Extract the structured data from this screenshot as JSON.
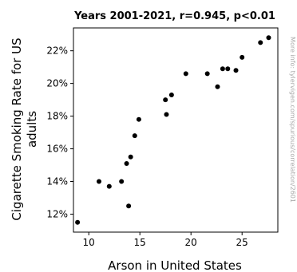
{
  "chart_data": {
    "type": "scatter",
    "title": "Years 2001-2021, r=0.945, p<0.01",
    "xlabel": "Arson in United States",
    "ylabel_line1": "Cigarette Smoking Rate for US",
    "ylabel_line2": "adults",
    "side_note": "More info: tylervigen.com/spurious/correlation/2601",
    "xlim": [
      8.5,
      28.5
    ],
    "ylim": [
      10.9,
      23.4
    ],
    "x_ticks": [
      10,
      15,
      20,
      25
    ],
    "x_tick_labels": [
      "10",
      "15",
      "20",
      "25"
    ],
    "y_ticks": [
      12,
      14,
      16,
      18,
      20,
      22
    ],
    "y_tick_labels": [
      "12%",
      "14%",
      "16%",
      "18%",
      "20%",
      "22%"
    ],
    "grid": false,
    "marker_color": "#000000",
    "points": [
      {
        "x": 8.9,
        "y": 11.5
      },
      {
        "x": 11.0,
        "y": 14.0
      },
      {
        "x": 12.0,
        "y": 13.7
      },
      {
        "x": 13.2,
        "y": 14.0
      },
      {
        "x": 13.7,
        "y": 15.1
      },
      {
        "x": 13.9,
        "y": 12.5
      },
      {
        "x": 14.1,
        "y": 15.5
      },
      {
        "x": 14.5,
        "y": 16.8
      },
      {
        "x": 14.9,
        "y": 17.8
      },
      {
        "x": 17.5,
        "y": 19.0
      },
      {
        "x": 17.6,
        "y": 18.1
      },
      {
        "x": 18.1,
        "y": 19.3
      },
      {
        "x": 19.5,
        "y": 20.6
      },
      {
        "x": 21.6,
        "y": 20.6
      },
      {
        "x": 22.6,
        "y": 19.8
      },
      {
        "x": 23.1,
        "y": 20.9
      },
      {
        "x": 23.6,
        "y": 20.9
      },
      {
        "x": 24.4,
        "y": 20.8
      },
      {
        "x": 25.0,
        "y": 21.6
      },
      {
        "x": 26.8,
        "y": 22.5
      },
      {
        "x": 27.6,
        "y": 22.8
      }
    ]
  }
}
